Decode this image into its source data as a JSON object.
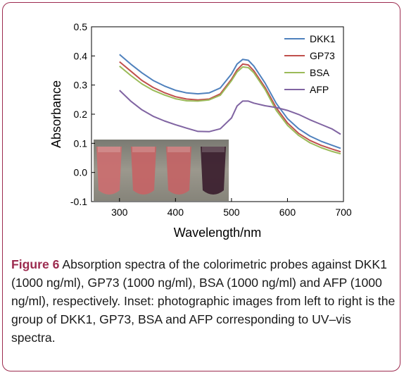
{
  "chart_data": {
    "type": "line",
    "xlabel": "Wavelength/nm",
    "ylabel": "Absorbance",
    "xlim": [
      250,
      700
    ],
    "ylim": [
      -0.1,
      0.5
    ],
    "x_ticks": [
      "300",
      "400",
      "500",
      "600",
      "700"
    ],
    "y_ticks": [
      "-0.1",
      "0.0",
      "0.1",
      "0.2",
      "0.3",
      "0.4",
      "0.5"
    ],
    "legend_position": "top-right",
    "grid": false,
    "series": [
      {
        "name": "DKK1",
        "color": "#4f81bd",
        "x": [
          300,
          320,
          340,
          360,
          380,
          400,
          420,
          440,
          460,
          480,
          500,
          510,
          520,
          530,
          540,
          560,
          580,
          600,
          620,
          640,
          660,
          680,
          695
        ],
        "y": [
          0.405,
          0.372,
          0.342,
          0.316,
          0.297,
          0.282,
          0.273,
          0.27,
          0.273,
          0.29,
          0.338,
          0.372,
          0.388,
          0.385,
          0.365,
          0.307,
          0.237,
          0.185,
          0.15,
          0.125,
          0.107,
          0.093,
          0.083
        ]
      },
      {
        "name": "GP73",
        "color": "#c0504d",
        "x": [
          300,
          320,
          340,
          360,
          380,
          400,
          420,
          440,
          460,
          480,
          500,
          510,
          520,
          530,
          540,
          560,
          580,
          600,
          620,
          640,
          660,
          680,
          695
        ],
        "y": [
          0.38,
          0.348,
          0.316,
          0.292,
          0.274,
          0.26,
          0.252,
          0.249,
          0.252,
          0.27,
          0.32,
          0.352,
          0.372,
          0.369,
          0.349,
          0.292,
          0.222,
          0.17,
          0.134,
          0.11,
          0.093,
          0.08,
          0.071
        ]
      },
      {
        "name": "BSA",
        "color": "#9bbb59",
        "x": [
          300,
          320,
          340,
          360,
          380,
          400,
          420,
          440,
          460,
          480,
          500,
          510,
          520,
          530,
          540,
          560,
          580,
          600,
          620,
          640,
          660,
          680,
          695
        ],
        "y": [
          0.365,
          0.333,
          0.304,
          0.282,
          0.266,
          0.253,
          0.246,
          0.245,
          0.249,
          0.265,
          0.315,
          0.345,
          0.362,
          0.36,
          0.342,
          0.285,
          0.213,
          0.162,
          0.127,
          0.102,
          0.085,
          0.072,
          0.064
        ]
      },
      {
        "name": "AFP",
        "color": "#8064a2",
        "x": [
          300,
          320,
          340,
          360,
          380,
          400,
          420,
          440,
          460,
          480,
          500,
          510,
          520,
          530,
          540,
          560,
          580,
          600,
          620,
          640,
          660,
          680,
          695
        ],
        "y": [
          0.282,
          0.245,
          0.215,
          0.193,
          0.177,
          0.164,
          0.152,
          0.141,
          0.14,
          0.15,
          0.187,
          0.228,
          0.245,
          0.245,
          0.238,
          0.229,
          0.223,
          0.213,
          0.199,
          0.181,
          0.165,
          0.149,
          0.131
        ]
      }
    ]
  },
  "caption": {
    "label": "Figure 6",
    "text": " Absorption spectra of the colorimetric probes against DKK1 (1000 ng/ml), GP73 (1000 ng/ml), BSA (1000 ng/ml) and AFP (1000 ng/ml), respectively. Inset: photographic images from left to right is the group of DKK1, GP73, BSA and AFP corresponding to UV–vis spectra."
  },
  "inset_photo": {
    "background": "#8c8a80",
    "tubes": [
      {
        "color": "#c96f70"
      },
      {
        "color": "#c46566"
      },
      {
        "color": "#c26566"
      },
      {
        "color": "#3d2230"
      }
    ]
  }
}
